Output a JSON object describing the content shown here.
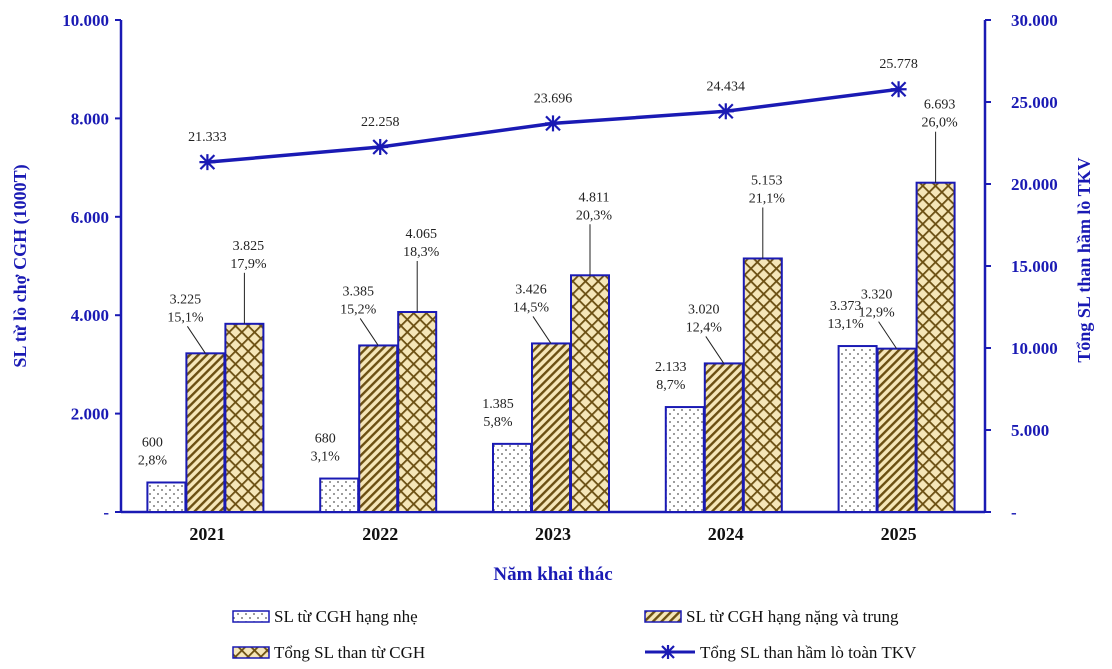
{
  "chart_data": {
    "type": "bar",
    "categories": [
      "2021",
      "2022",
      "2023",
      "2024",
      "2025"
    ],
    "xlabel": "Năm khai thác",
    "ylabel_left": "SL từ lò chợ CGH (1000T)",
    "ylabel_right": "Tổng SL than hầm lò TKV",
    "ylim_left": [
      0,
      10000
    ],
    "ylim_right": [
      0,
      30000
    ],
    "left_ticks": [
      "-",
      "2.000",
      "4.000",
      "6.000",
      "8.000",
      "10.000"
    ],
    "right_ticks": [
      "-",
      "5.000",
      "10.000",
      "15.000",
      "20.000",
      "25.000",
      "30.000"
    ],
    "series": [
      {
        "name": "SL từ CGH hạng nhẹ",
        "kind": "bar",
        "pattern": "dots",
        "values": [
          600,
          680,
          1385,
          2133,
          3373
        ],
        "labels": [
          "600",
          "680",
          "1.385",
          "2.133",
          "3.373"
        ],
        "pct": [
          "2,8%",
          "3,1%",
          "5,8%",
          "8,7%",
          "13,1%"
        ]
      },
      {
        "name": "SL từ CGH hạng nặng và trung",
        "kind": "bar",
        "pattern": "diagonal",
        "values": [
          3225,
          3385,
          3426,
          3020,
          3320
        ],
        "labels": [
          "3.225",
          "3.385",
          "3.426",
          "3.020",
          "3.320"
        ],
        "pct": [
          "15,1%",
          "15,2%",
          "14,5%",
          "12,4%",
          "12,9%"
        ]
      },
      {
        "name": "Tổng SL than từ CGH",
        "kind": "bar",
        "pattern": "crosshatch",
        "values": [
          3825,
          4065,
          4811,
          5153,
          6693
        ],
        "labels": [
          "3.825",
          "4.065",
          "4.811",
          "5.153",
          "6.693"
        ],
        "pct": [
          "17,9%",
          "18,3%",
          "20,3%",
          "21,1%",
          "26,0%"
        ]
      },
      {
        "name": "Tổng SL than hầm lò toàn TKV",
        "kind": "line",
        "axis": "right",
        "values": [
          21333,
          22258,
          23696,
          24434,
          25778
        ],
        "labels": [
          "21.333",
          "22.258",
          "23.696",
          "24.434",
          "25.778"
        ]
      }
    ],
    "colors": {
      "axis": "#1a1ab4",
      "line": "#1a1ab4",
      "bar_fill": "#f5e6b8",
      "bar_stroke": "#1a1ab4",
      "hatch": "#7a5a12"
    }
  }
}
